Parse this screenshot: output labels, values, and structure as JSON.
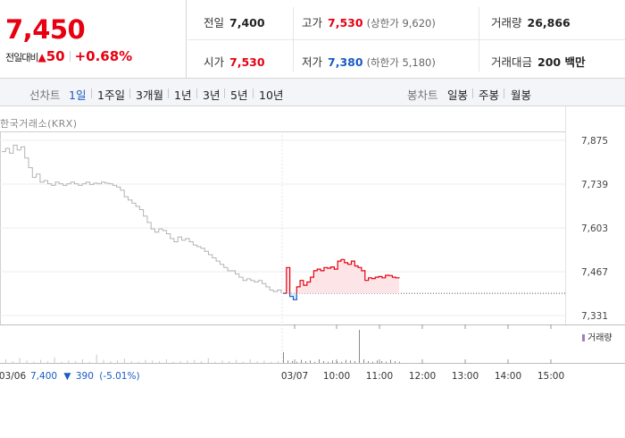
{
  "quote": {
    "price": "7,450",
    "change_label": "전일대비",
    "change_arrow": "▲",
    "change_value": "50",
    "change_pct": "+0.68%"
  },
  "stats": {
    "prev_close": {
      "label": "전일",
      "value": "7,400"
    },
    "high": {
      "label": "고가",
      "value": "7,530",
      "sub": "(상한가 9,620)"
    },
    "volume": {
      "label": "거래량",
      "value": "26,866"
    },
    "open": {
      "label": "시가",
      "value": "7,530"
    },
    "low": {
      "label": "저가",
      "value": "7,380",
      "sub": "(하한가 5,180)"
    },
    "turnover": {
      "label": "거래대금",
      "value": "200 백만"
    }
  },
  "tabs": {
    "line_label": "선차트",
    "line_tabs": [
      "1일",
      "1주일",
      "3개월",
      "1년",
      "3년",
      "5년",
      "10년"
    ],
    "active_line_tab": "1일",
    "candle_label": "봉차트",
    "candle_tabs": [
      "일봉",
      "주봉",
      "월봉"
    ]
  },
  "chart_data": {
    "type": "line",
    "source": "한국거래소(KRX)",
    "y_ticks": [
      "7,875",
      "7,739",
      "7,603",
      "7,467",
      "7,331"
    ],
    "ylim": [
      7331,
      7875
    ],
    "x_ticks": [
      "03/06",
      "03/07",
      "10:00",
      "11:00",
      "12:00",
      "13:00",
      "14:00",
      "15:00"
    ],
    "prev_close": 7400,
    "volume_legend": "거래량",
    "prev_day_info": {
      "date": "03/06",
      "close": "7,400",
      "arrow": "▼",
      "change": "390",
      "pct": "(-5.01%)"
    },
    "series": [
      {
        "period": "03/06",
        "values": [
          7840,
          7850,
          7835,
          7860,
          7845,
          7855,
          7820,
          7790,
          7760,
          7770,
          7745,
          7750,
          7740,
          7735,
          7745,
          7740,
          7735,
          7740,
          7745,
          7740,
          7735,
          7740,
          7745,
          7738,
          7742,
          7740,
          7745,
          7742,
          7740,
          7735,
          7730,
          7720,
          7700,
          7690,
          7680,
          7670,
          7660,
          7640,
          7620,
          7600,
          7590,
          7600,
          7595,
          7585,
          7570,
          7560,
          7575,
          7565,
          7570,
          7560,
          7550,
          7545,
          7540,
          7530,
          7520,
          7510,
          7500,
          7490,
          7480,
          7470,
          7470,
          7460,
          7450,
          7440,
          7445,
          7440,
          7435,
          7440,
          7430,
          7420,
          7410,
          7405,
          7410,
          7400
        ]
      },
      {
        "period": "03/07",
        "values": [
          7400,
          7480,
          7390,
          7380,
          7420,
          7440,
          7425,
          7435,
          7450,
          7470,
          7475,
          7470,
          7480,
          7478,
          7482,
          7475,
          7500,
          7505,
          7495,
          7490,
          7500,
          7485,
          7480,
          7470,
          7440,
          7448,
          7446,
          7450,
          7452,
          7448,
          7456,
          7455,
          7450,
          7448,
          7450
        ]
      }
    ],
    "volume": {
      "03/06": [
        6,
        3,
        8,
        4,
        2,
        5,
        3,
        9,
        2,
        4,
        3,
        6,
        2,
        14,
        5,
        3,
        4,
        7,
        3,
        2,
        5,
        4,
        3,
        6,
        2,
        3,
        4,
        5,
        3,
        8,
        2,
        4,
        3,
        5,
        2,
        6,
        3,
        4,
        2,
        3
      ],
      "03/07": [
        18,
        4,
        3,
        2,
        5,
        3,
        4,
        2,
        6,
        3,
        2,
        4,
        3,
        2,
        5,
        4,
        3,
        55,
        6,
        3,
        2,
        4,
        3,
        2,
        5,
        3,
        2
      ]
    }
  }
}
